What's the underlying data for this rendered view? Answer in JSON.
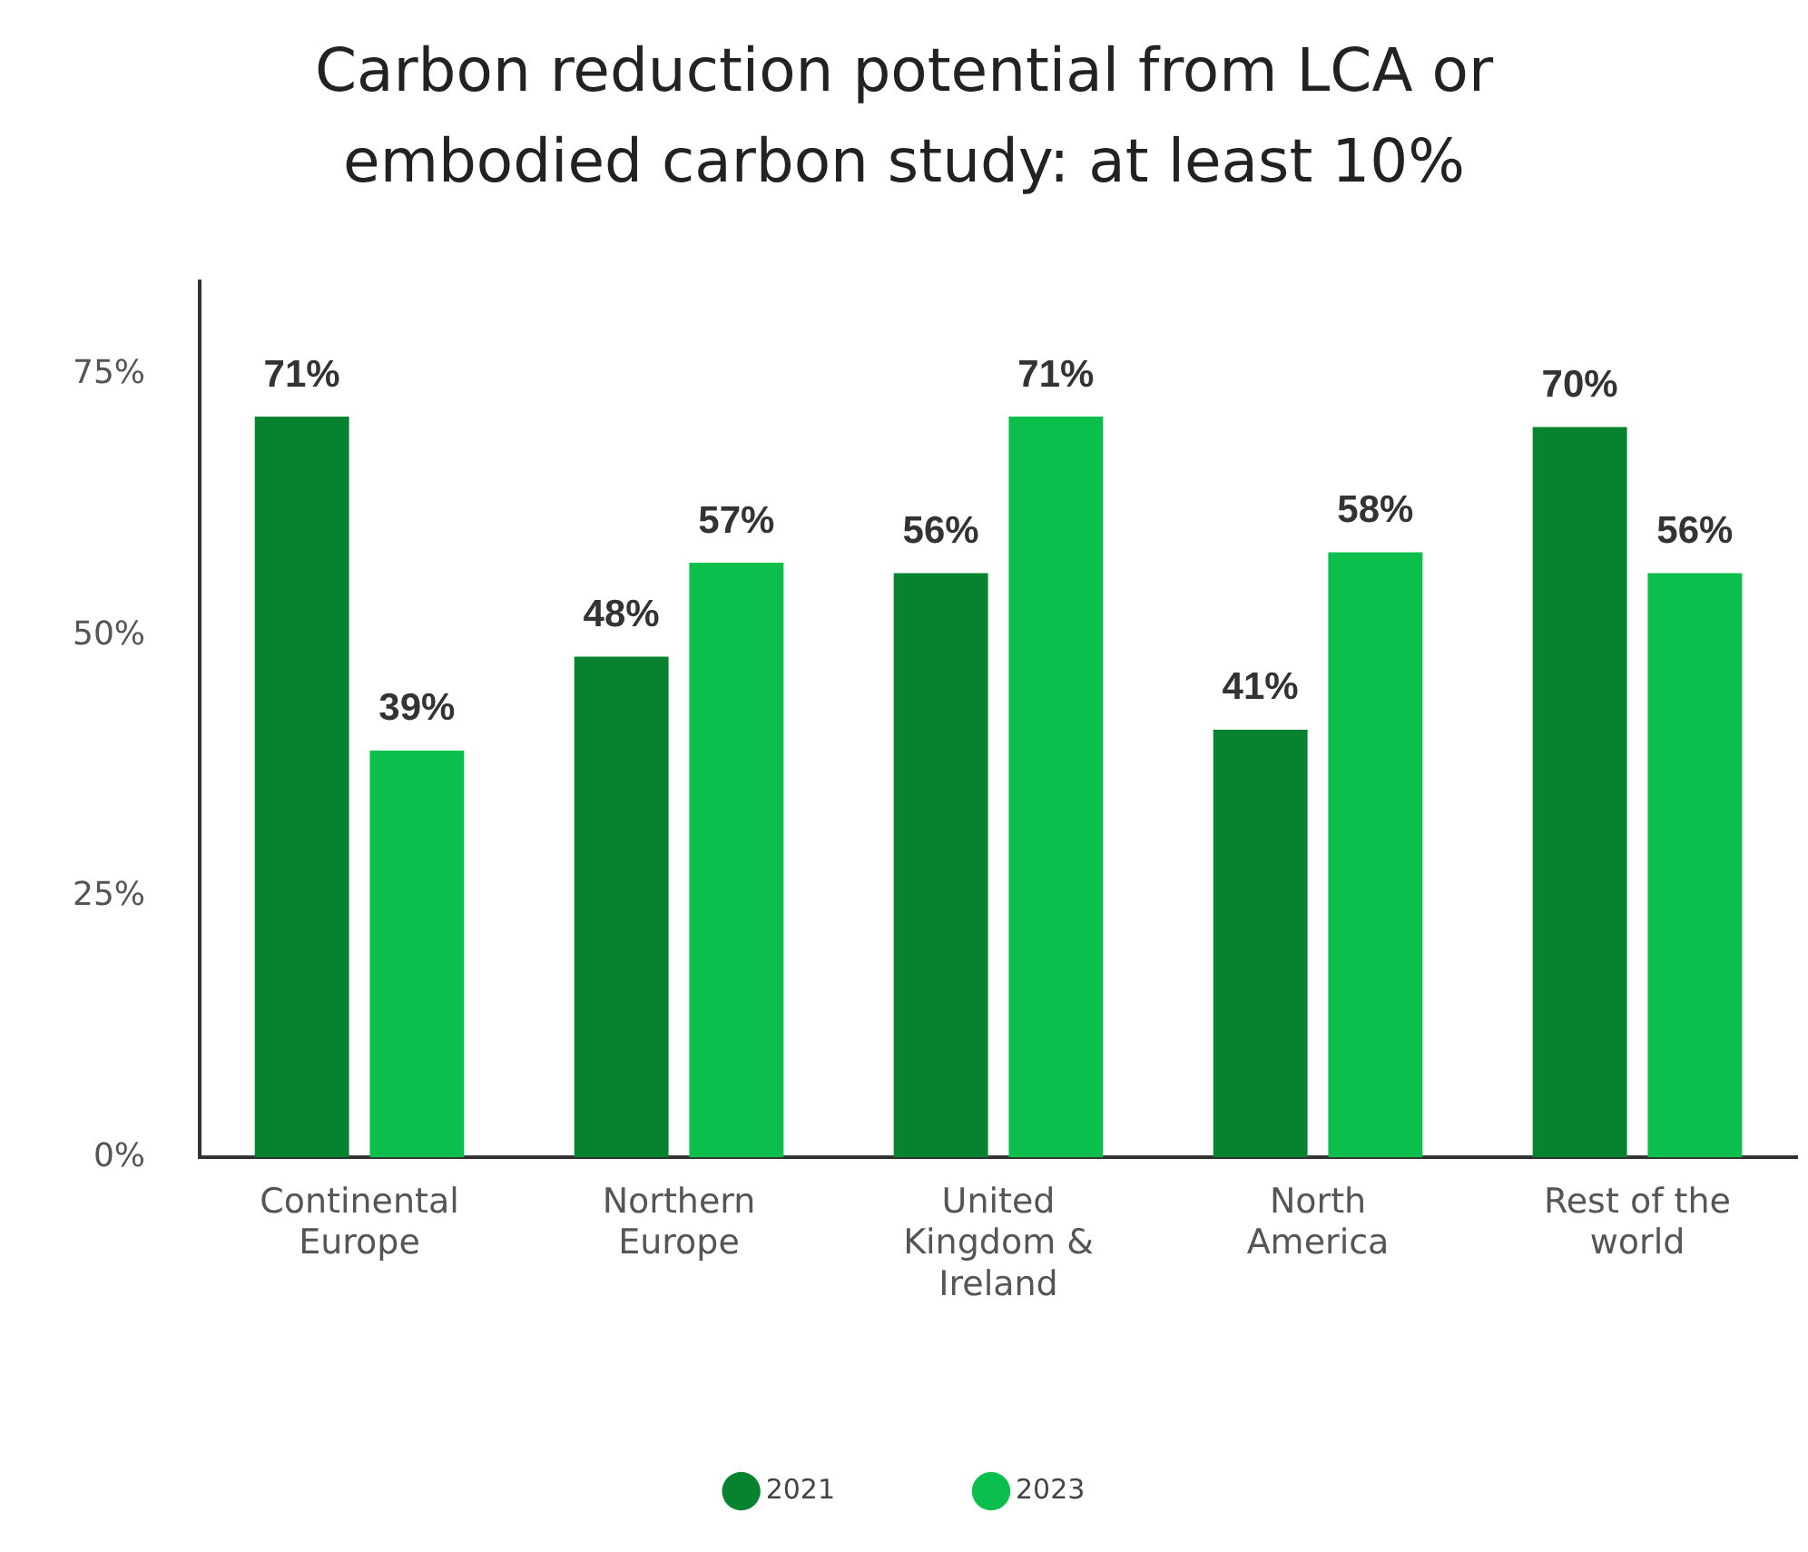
{
  "chart_data": {
    "type": "bar",
    "title": "Carbon reduction potential from LCA or embodied carbon study: at least 10%",
    "categories": [
      "Continental Europe",
      "Northern Europe",
      "United Kingdom & Ireland",
      "North America",
      "Rest of the world"
    ],
    "series": [
      {
        "name": "2021",
        "color": "#07832f",
        "values": [
          71,
          48,
          56,
          41,
          70
        ],
        "value_labels": [
          "71%",
          "48%",
          "56%",
          "41%",
          "70%"
        ]
      },
      {
        "name": "2023",
        "color": "#0bbf4c",
        "values": [
          39,
          57,
          71,
          58,
          56
        ],
        "value_labels": [
          "39%",
          "57%",
          "71%",
          "58%",
          "56%"
        ]
      }
    ],
    "ylim": [
      0,
      84
    ],
    "yticks": [
      {
        "value": 0,
        "label": "0%"
      },
      {
        "value": 25,
        "label": "25%"
      },
      {
        "value": 50,
        "label": "50%"
      },
      {
        "value": 75,
        "label": "75%"
      }
    ],
    "grid": false,
    "legend": "bottom"
  }
}
